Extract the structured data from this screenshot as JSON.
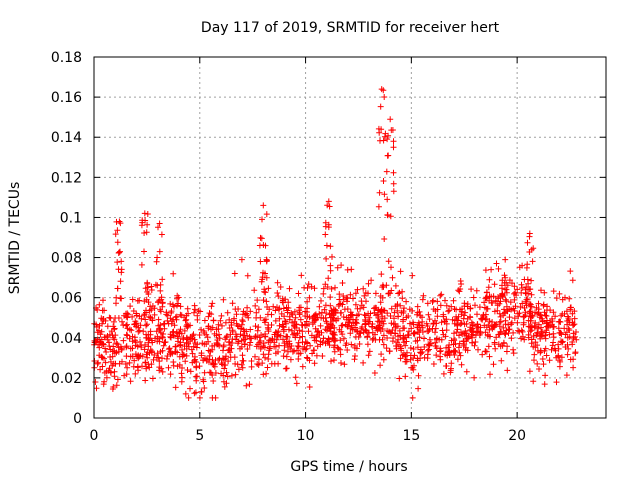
{
  "chart_data": {
    "type": "scatter",
    "title": "Day 117 of 2019, SRMTID for receiver hert",
    "xlabel": "GPS time / hours",
    "ylabel": "SRMTID / TECUs",
    "xlim": [
      0,
      24.2
    ],
    "ylim": [
      0,
      0.18
    ],
    "xticks": [
      0,
      5,
      10,
      15,
      20
    ],
    "xtick_labels": [
      "0",
      "5",
      "10",
      "15",
      "20"
    ],
    "yticks": [
      0,
      0.02,
      0.04,
      0.06,
      0.08,
      0.1,
      0.12,
      0.14,
      0.16,
      0.18
    ],
    "ytick_labels": [
      "0",
      "0.02",
      "0.04",
      "0.06",
      "0.08",
      "0.1",
      "0.12",
      "0.14",
      "0.16",
      "0.18"
    ],
    "grid": true,
    "marker": "+",
    "marker_color": "#ff0000",
    "series": [
      {
        "name": "SRMTID",
        "baseline": [
          [
            0,
            0.037
          ],
          [
            1,
            0.038
          ],
          [
            2,
            0.039
          ],
          [
            3,
            0.038
          ],
          [
            4,
            0.04
          ],
          [
            5,
            0.033
          ],
          [
            6,
            0.035
          ],
          [
            7,
            0.039
          ],
          [
            8,
            0.042
          ],
          [
            9,
            0.043
          ],
          [
            10,
            0.042
          ],
          [
            11,
            0.044
          ],
          [
            12,
            0.046
          ],
          [
            13,
            0.049
          ],
          [
            14,
            0.048
          ],
          [
            15,
            0.042
          ],
          [
            16,
            0.04
          ],
          [
            17,
            0.042
          ],
          [
            18,
            0.046
          ],
          [
            19,
            0.051
          ],
          [
            20,
            0.054
          ],
          [
            21,
            0.045
          ],
          [
            22,
            0.04
          ],
          [
            22.8,
            0.04
          ]
        ],
        "bursts": [
          {
            "x": 1.2,
            "max": 0.098
          },
          {
            "x": 2.4,
            "max": 0.102
          },
          {
            "x": 3.1,
            "max": 0.097
          },
          {
            "x": 8.0,
            "max": 0.106
          },
          {
            "x": 11.1,
            "max": 0.108
          },
          {
            "x": 13.6,
            "max": 0.164
          },
          {
            "x": 14.0,
            "max": 0.149
          },
          {
            "x": 20.6,
            "max": 0.092
          }
        ],
        "n_points": 1800,
        "x_range": [
          0,
          22.8
        ]
      }
    ]
  }
}
